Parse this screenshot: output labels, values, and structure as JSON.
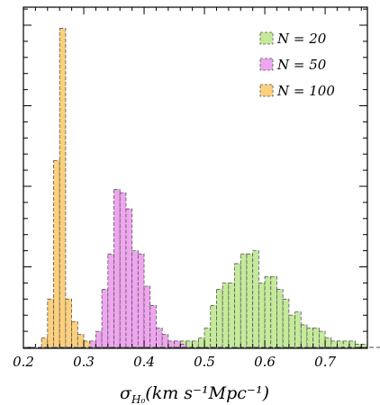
{
  "chart_data": {
    "type": "histogram",
    "xlim": [
      0.2,
      0.77
    ],
    "ylim": [
      0,
      1.0
    ],
    "xticks": [
      "0.2",
      "0.3",
      "0.4",
      "0.5",
      "0.6",
      "0.7"
    ],
    "yticks_labeled": false,
    "xlabel": {
      "main": "σ",
      "sub": "H₀",
      "rest": "(km s⁻¹Mpc⁻¹)"
    },
    "ylabel": "",
    "legend_position": "top-right",
    "bin_width": 0.01,
    "series": [
      {
        "name": "N = 20",
        "color": "#c5ea9b",
        "bin_starts": [
          0.45,
          0.46,
          0.47,
          0.48,
          0.49,
          0.5,
          0.51,
          0.52,
          0.53,
          0.54,
          0.55,
          0.56,
          0.57,
          0.58,
          0.59,
          0.6,
          0.61,
          0.62,
          0.63,
          0.64,
          0.65,
          0.66,
          0.67,
          0.68,
          0.69,
          0.7,
          0.71,
          0.72,
          0.73,
          0.74,
          0.75,
          0.76
        ],
        "counts": [
          0.01,
          0.02,
          0.02,
          0.02,
          0.03,
          0.06,
          0.13,
          0.18,
          0.2,
          0.2,
          0.26,
          0.29,
          0.29,
          0.3,
          0.2,
          0.22,
          0.22,
          0.18,
          0.15,
          0.1,
          0.11,
          0.07,
          0.06,
          0.06,
          0.05,
          0.03,
          0.02,
          0.02,
          0.02,
          0.02,
          0.01,
          0.01
        ]
      },
      {
        "name": "N = 50",
        "color": "#eea6ee",
        "bin_starts": [
          0.31,
          0.32,
          0.33,
          0.34,
          0.35,
          0.36,
          0.37,
          0.38,
          0.39,
          0.4,
          0.41,
          0.42,
          0.43,
          0.44,
          0.45,
          0.46
        ],
        "counts": [
          0.02,
          0.05,
          0.18,
          0.29,
          0.49,
          0.48,
          0.43,
          0.3,
          0.29,
          0.19,
          0.13,
          0.06,
          0.04,
          0.02,
          0.02,
          0.01
        ]
      },
      {
        "name": "N = 100",
        "color": "#fbd07e",
        "bin_starts": [
          0.23,
          0.24,
          0.25,
          0.26,
          0.27,
          0.28,
          0.29,
          0.3
        ],
        "counts": [
          0.03,
          0.15,
          0.58,
          0.99,
          0.15,
          0.08,
          0.04,
          0.02
        ]
      }
    ]
  }
}
